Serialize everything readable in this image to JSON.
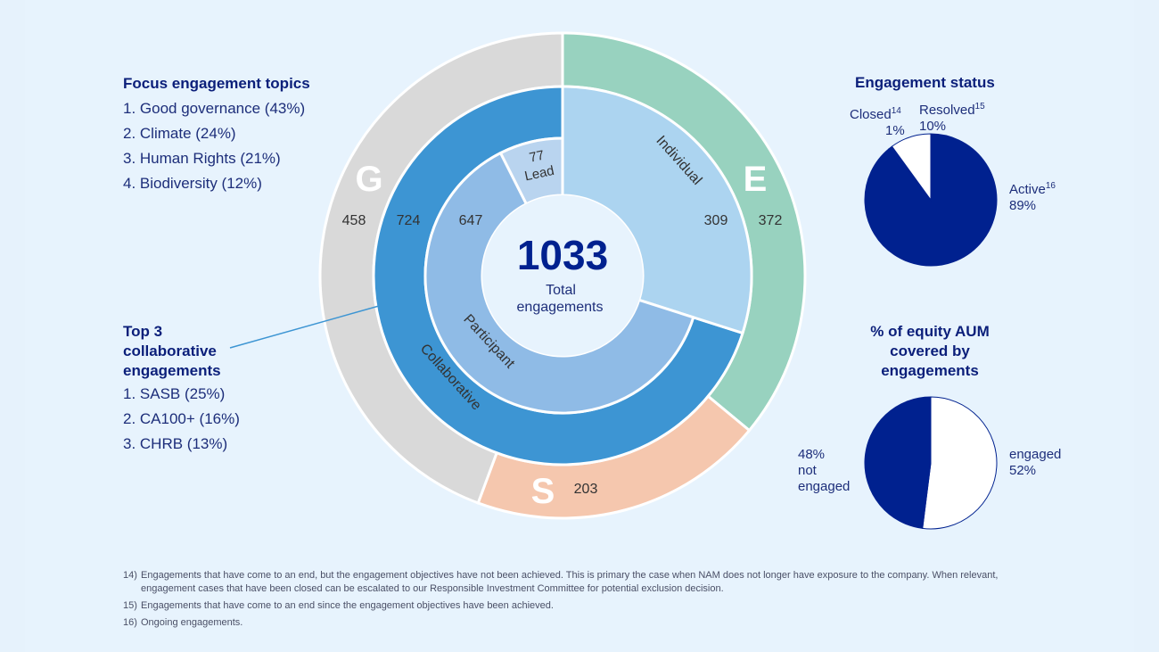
{
  "focus_topics": {
    "heading": "Focus engagement topics",
    "items": [
      "1. Good governance (43%)",
      "2. Climate (24%)",
      "3. Human Rights (21%)",
      "4. Biodiversity (12%)"
    ]
  },
  "collab": {
    "heading_lines": [
      "Top 3",
      "collaborative",
      "engagements"
    ],
    "items": [
      "1. SASB (25%)",
      "2. CA100+ (16%)",
      "3. CHRB (13%)"
    ]
  },
  "center": {
    "total": "1033",
    "label_lines": [
      "Total",
      "engagements"
    ]
  },
  "status": {
    "heading": "Engagement status",
    "closed_label": "Closed",
    "closed_sup": "14",
    "closed_pct": "1%",
    "resolved_label": "Resolved",
    "resolved_sup": "15",
    "resolved_pct": "10%",
    "active_label": "Active",
    "active_sup": "16",
    "active_pct": "89%"
  },
  "aum": {
    "heading_lines": [
      "% of equity AUM",
      "covered by",
      "engagements"
    ],
    "not_engaged_lines": [
      "48%",
      "not",
      "engaged"
    ],
    "engaged_lines": [
      "engaged",
      "52%"
    ]
  },
  "footnotes": [
    {
      "num": "14)",
      "text": "Engagements that have come to an end, but the engagement objectives have not been achieved. This is primary the case when NAM does not longer have exposure to the company. When relevant, engagement cases that have been closed can be escalated to our Responsible Investment Committee for potential exclusion decision."
    },
    {
      "num": "15)",
      "text": "Engagements that have come to an end since the engagement objectives have been achieved."
    },
    {
      "num": "16)",
      "text": "Ongoing engagements."
    }
  ],
  "colors": {
    "G": "#d9d9d9",
    "E": "#98d2bf",
    "S": "#f5c7ae",
    "collaborative": "#3d95d3",
    "individual": "#acd4f0",
    "participant": "#8fbbe6",
    "lead": "#b9d4ef",
    "navy": "#00218f",
    "white": "#ffffff",
    "bg": "#e7f3fd"
  },
  "chart_data": [
    {
      "type": "pie",
      "variant": "multi-ring donut",
      "total": 1033,
      "rings": [
        {
          "name": "ESG",
          "slices": [
            {
              "label": "E",
              "value": 372
            },
            {
              "label": "S",
              "value": 203
            },
            {
              "label": "G",
              "value": 458
            }
          ]
        },
        {
          "name": "Engagement type",
          "slices": [
            {
              "label": "Individual",
              "value": 309
            },
            {
              "label": "Collaborative",
              "value": 724
            }
          ]
        },
        {
          "name": "Collaborative role",
          "slices": [
            {
              "label": "Lead",
              "value": 77
            },
            {
              "label": "Participant",
              "value": 647
            }
          ]
        }
      ]
    },
    {
      "type": "pie",
      "title": "Engagement status",
      "slices": [
        {
          "label": "Active",
          "value": 89
        },
        {
          "label": "Closed",
          "value": 1
        },
        {
          "label": "Resolved",
          "value": 10
        }
      ]
    },
    {
      "type": "pie",
      "title": "% of equity AUM covered by engagements",
      "slices": [
        {
          "label": "engaged",
          "value": 52
        },
        {
          "label": "not engaged",
          "value": 48
        }
      ]
    }
  ]
}
